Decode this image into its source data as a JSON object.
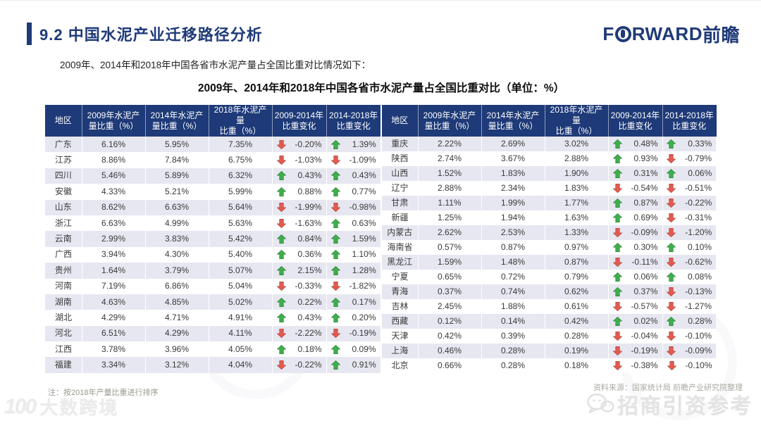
{
  "header": {
    "title": "9.2 中国水泥产业迁移路径分析",
    "logo": {
      "prefix": "F",
      "suffix": "RWARD",
      "cn": "前瞻"
    }
  },
  "intro": "2009年、2014年和2018年中国各省市水泥产量占全国比重对比情况如下：",
  "chart_data": {
    "type": "table",
    "title": "2009年、2014年和2018年中国各省市水泥产量占全国比重对比（单位：%）",
    "headers": [
      "地区",
      "2009年水泥产\n量比重（%）",
      "2014年水泥产\n量比重（%）",
      "2018年水泥产量\n比重（%）",
      "2009-2014年\n比重变化",
      "2014-2018年\n比重变化"
    ],
    "row_format": [
      "region",
      "share_2009",
      "share_2014",
      "share_2018",
      "trend_2009_2014",
      "change_2009_2014",
      "trend_2014_2018",
      "change_2014_2018"
    ],
    "left_rows": [
      [
        "广东",
        "6.16%",
        "5.95%",
        "7.35%",
        "down",
        "-0.20%",
        "up",
        "1.39%"
      ],
      [
        "江苏",
        "8.86%",
        "7.84%",
        "6.75%",
        "down",
        "-1.03%",
        "down",
        "-1.09%"
      ],
      [
        "四川",
        "5.46%",
        "5.89%",
        "6.32%",
        "up",
        "0.43%",
        "up",
        "0.43%"
      ],
      [
        "安徽",
        "4.33%",
        "5.21%",
        "5.99%",
        "up",
        "0.88%",
        "up",
        "0.77%"
      ],
      [
        "山东",
        "8.62%",
        "6.63%",
        "5.64%",
        "down",
        "-1.99%",
        "down",
        "-0.98%"
      ],
      [
        "浙江",
        "6.63%",
        "4.99%",
        "5.63%",
        "down",
        "-1.63%",
        "up",
        "0.63%"
      ],
      [
        "云南",
        "2.99%",
        "3.83%",
        "5.42%",
        "up",
        "0.84%",
        "up",
        "1.59%"
      ],
      [
        "广西",
        "3.94%",
        "4.30%",
        "5.40%",
        "up",
        "0.36%",
        "up",
        "1.10%"
      ],
      [
        "贵州",
        "1.64%",
        "3.79%",
        "5.07%",
        "up",
        "2.15%",
        "up",
        "1.28%"
      ],
      [
        "河南",
        "7.19%",
        "6.86%",
        "5.04%",
        "down",
        "-0.33%",
        "down",
        "-1.82%"
      ],
      [
        "湖南",
        "4.63%",
        "4.85%",
        "5.02%",
        "up",
        "0.22%",
        "up",
        "0.17%"
      ],
      [
        "湖北",
        "4.29%",
        "4.71%",
        "4.91%",
        "up",
        "0.43%",
        "up",
        "0.20%"
      ],
      [
        "河北",
        "6.51%",
        "4.29%",
        "4.11%",
        "down",
        "-2.22%",
        "down",
        "-0.19%"
      ],
      [
        "江西",
        "3.78%",
        "3.96%",
        "4.05%",
        "up",
        "0.18%",
        "up",
        "0.09%"
      ],
      [
        "福建",
        "3.34%",
        "3.12%",
        "4.04%",
        "down",
        "-0.22%",
        "up",
        "0.91%"
      ]
    ],
    "right_rows": [
      [
        "重庆",
        "2.22%",
        "2.69%",
        "3.02%",
        "up",
        "0.48%",
        "up",
        "0.33%"
      ],
      [
        "陕西",
        "2.74%",
        "3.67%",
        "2.88%",
        "up",
        "0.93%",
        "down",
        "-0.79%"
      ],
      [
        "山西",
        "1.52%",
        "1.83%",
        "1.90%",
        "up",
        "0.31%",
        "up",
        "0.06%"
      ],
      [
        "辽宁",
        "2.88%",
        "2.34%",
        "1.83%",
        "down",
        "-0.54%",
        "down",
        "-0.51%"
      ],
      [
        "甘肃",
        "1.11%",
        "1.99%",
        "1.77%",
        "up",
        "0.87%",
        "down",
        "-0.22%"
      ],
      [
        "新疆",
        "1.25%",
        "1.94%",
        "1.63%",
        "up",
        "0.69%",
        "down",
        "-0.31%"
      ],
      [
        "内蒙古",
        "2.62%",
        "2.53%",
        "1.33%",
        "down",
        "-0.09%",
        "down",
        "-1.20%"
      ],
      [
        "海南省",
        "0.57%",
        "0.87%",
        "0.97%",
        "up",
        "0.30%",
        "up",
        "0.10%"
      ],
      [
        "黑龙江",
        "1.59%",
        "1.48%",
        "0.87%",
        "down",
        "-0.11%",
        "down",
        "-0.62%"
      ],
      [
        "宁夏",
        "0.65%",
        "0.72%",
        "0.79%",
        "up",
        "0.06%",
        "up",
        "0.08%"
      ],
      [
        "青海",
        "0.37%",
        "0.74%",
        "0.62%",
        "up",
        "0.37%",
        "down",
        "-0.13%"
      ],
      [
        "吉林",
        "2.45%",
        "1.88%",
        "0.61%",
        "down",
        "-0.57%",
        "down",
        "-1.27%"
      ],
      [
        "西藏",
        "0.12%",
        "0.14%",
        "0.42%",
        "up",
        "0.02%",
        "up",
        "0.28%"
      ],
      [
        "天津",
        "0.42%",
        "0.39%",
        "0.28%",
        "down",
        "-0.04%",
        "down",
        "-0.10%"
      ],
      [
        "上海",
        "0.46%",
        "0.28%",
        "0.19%",
        "down",
        "-0.19%",
        "down",
        "-0.09%"
      ],
      [
        "北京",
        "0.66%",
        "0.28%",
        "0.18%",
        "down",
        "-0.38%",
        "down",
        "-0.10%"
      ]
    ]
  },
  "footer": {
    "note": "注：按2018年产量比重进行排序",
    "source": "资料来源：国家统计局  前瞻产业研究院整理",
    "watermark_right": "招商引资参考",
    "watermark_left": "大数跨境",
    "watermark_left_logo": "100"
  },
  "colors": {
    "navy": "#1f3a78",
    "header_bg": "#1e3a78",
    "row_stripe": "#e7e7f1",
    "up_green": "#3fae4c",
    "up_green_border": "#2e8a3c",
    "down_red": "#e25b50",
    "down_red_border": "#b7473d"
  }
}
